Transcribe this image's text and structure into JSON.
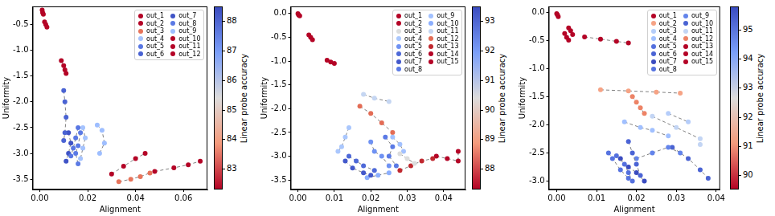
{
  "chart_data": [
    {
      "type": "scatter",
      "x_label": "Alignment",
      "y_label": "Uniformity",
      "xlim": [
        -0.003,
        0.07
      ],
      "xticks": [
        {
          "value": 0,
          "label": "0.00"
        },
        0.02,
        0.04,
        0.06
      ],
      "ylim": [
        -3.7,
        -0.15
      ],
      "yticks": [
        -0.5,
        {
          "value": -1,
          "label": "-1.0"
        },
        -1.5,
        {
          "value": -2,
          "label": "-2.0"
        },
        -2.5,
        {
          "value": -3,
          "label": "-3.0"
        },
        -3.5
      ],
      "grid": false,
      "legend": "upper right",
      "marker": "circle",
      "line_style": "dashed",
      "colorbar": {
        "label": "Linear probe accuracy",
        "range": [
          82.3,
          88.5
        ],
        "ticks": [
          83,
          84,
          85,
          86,
          87,
          88
        ]
      },
      "series": [
        {
          "name": "out_1",
          "color": "#b40426",
          "x": [
            0.001,
            0.0012,
            0.0015
          ],
          "values": [
            -0.22,
            -0.27,
            -0.3
          ]
        },
        {
          "name": "out_2",
          "color": "#b40426",
          "x": [
            0.002,
            0.0025,
            0.003
          ],
          "values": [
            -0.45,
            -0.5,
            -0.55
          ]
        },
        {
          "name": "out_3",
          "color": "#e7745b",
          "x": [
            0.033,
            0.038,
            0.042,
            0.046
          ],
          "values": [
            -3.55,
            -3.5,
            -3.45,
            -3.38
          ]
        },
        {
          "name": "out_4",
          "color": "#a5c3fe",
          "x": [
            0.018,
            0.019,
            0.018,
            0.017
          ],
          "values": [
            -2.5,
            -2.7,
            -2.9,
            -3.1
          ]
        },
        {
          "name": "out_5",
          "color": "#5977e3",
          "x": [
            0.016,
            0.015,
            0.014,
            0.013
          ],
          "values": [
            -2.5,
            -2.7,
            -2.9,
            -3.05
          ]
        },
        {
          "name": "out_6",
          "color": "#4a63d3",
          "x": [
            0.01,
            0.0105,
            0.011,
            0.0105,
            0.01
          ],
          "values": [
            -1.78,
            -2.0,
            -2.3,
            -2.6,
            -2.75
          ]
        },
        {
          "name": "out_7",
          "color": "#3f53c6",
          "x": [
            0.012,
            0.013,
            0.012,
            0.011
          ],
          "values": [
            -2.6,
            -2.8,
            -3.0,
            -3.15
          ]
        },
        {
          "name": "out_8",
          "color": "#5b7ae5",
          "x": [
            0.017,
            0.016,
            0.015,
            0.016
          ],
          "values": [
            -2.6,
            -2.85,
            -3.0,
            -3.2
          ]
        },
        {
          "name": "out_9",
          "color": "#9ebeff",
          "x": [
            0.024,
            0.026,
            0.027,
            0.025
          ],
          "values": [
            -2.45,
            -2.55,
            -2.8,
            -3.0
          ]
        },
        {
          "name": "out_10",
          "color": "#b40426",
          "x": [
            0.009,
            0.01,
            0.0105,
            0.011
          ],
          "values": [
            -1.2,
            -1.3,
            -1.38,
            -1.45
          ]
        },
        {
          "name": "out_11",
          "color": "#b40426",
          "x": [
            0.03,
            0.035,
            0.04,
            0.044
          ],
          "values": [
            -3.4,
            -3.25,
            -3.1,
            -3.0
          ]
        },
        {
          "name": "out_12",
          "color": "#b40426",
          "x": [
            0.048,
            0.056,
            0.062,
            0.067
          ],
          "values": [
            -3.35,
            -3.28,
            -3.22,
            -3.15
          ]
        }
      ]
    },
    {
      "type": "scatter",
      "x_label": "Alignment",
      "y_label": "Uniformity",
      "xlim": [
        -0.002,
        0.046
      ],
      "xticks": [
        {
          "value": 0,
          "label": "0.00"
        },
        0.01,
        0.02,
        0.03,
        0.04
      ],
      "ylim": [
        -3.7,
        0.15
      ],
      "yticks": [
        {
          "value": 0,
          "label": "0.0"
        },
        -0.5,
        {
          "value": -1,
          "label": "-1.0"
        },
        -1.5,
        {
          "value": -2,
          "label": "-2.0"
        },
        -2.5,
        {
          "value": -3,
          "label": "-3.0"
        },
        -3.5
      ],
      "grid": false,
      "legend": "upper right",
      "marker": "circle",
      "line_style": "dashed",
      "colorbar": {
        "label": "Linear probe accuracy",
        "range": [
          87.3,
          93.5
        ],
        "ticks": [
          88,
          89,
          90,
          91,
          92,
          93
        ]
      },
      "series": [
        {
          "name": "out_1",
          "color": "#b40426",
          "x": [
            0.0,
            0.0002,
            0.0005
          ],
          "values": [
            0.0,
            -0.03,
            -0.05
          ]
        },
        {
          "name": "out_2",
          "color": "#b40426",
          "x": [
            0.003,
            0.0035,
            0.004
          ],
          "values": [
            -0.45,
            -0.5,
            -0.55
          ]
        },
        {
          "name": "out_3",
          "color": "#dcdddd",
          "x": [
            0.028,
            0.03,
            0.032
          ],
          "values": [
            -2.95,
            -3.05,
            -3.15
          ]
        },
        {
          "name": "out_4",
          "color": "#aac7fd",
          "x": [
            0.014,
            0.013,
            0.012,
            0.011
          ],
          "values": [
            -2.4,
            -2.6,
            -2.8,
            -2.9
          ]
        },
        {
          "name": "out_5",
          "color": "#6f92f3",
          "x": [
            0.02,
            0.021,
            0.023,
            0.025
          ],
          "values": [
            -2.7,
            -2.9,
            -3.0,
            -3.2
          ]
        },
        {
          "name": "out_6",
          "color": "#4e69d8",
          "x": [
            0.014,
            0.016,
            0.018,
            0.021
          ],
          "values": [
            -3.0,
            -3.1,
            -3.2,
            -3.3
          ]
        },
        {
          "name": "out_7",
          "color": "#4358cb",
          "x": [
            0.013,
            0.015,
            0.018,
            0.02
          ],
          "values": [
            -3.1,
            -3.25,
            -3.35,
            -3.4
          ]
        },
        {
          "name": "out_8",
          "color": "#5b7ae5",
          "x": [
            0.024,
            0.026,
            0.025,
            0.027
          ],
          "values": [
            -2.6,
            -2.8,
            -3.0,
            -3.2
          ]
        },
        {
          "name": "out_9",
          "color": "#a2c1ff",
          "x": [
            0.026,
            0.028,
            0.029
          ],
          "values": [
            -2.6,
            -2.75,
            -2.9
          ]
        },
        {
          "name": "out_10",
          "color": "#8caffe",
          "x": [
            0.019,
            0.022,
            0.025
          ],
          "values": [
            -3.45,
            -3.4,
            -3.35
          ]
        },
        {
          "name": "out_11",
          "color": "#c5d6f2",
          "x": [
            0.018,
            0.021,
            0.025
          ],
          "values": [
            -1.7,
            -1.78,
            -1.85
          ]
        },
        {
          "name": "out_12",
          "color": "#e36c55",
          "x": [
            0.017,
            0.02,
            0.023,
            0.026
          ],
          "values": [
            -1.95,
            -2.1,
            -2.3,
            -2.5
          ]
        },
        {
          "name": "out_13",
          "color": "#c0282f",
          "x": [
            0.028,
            0.031,
            0.034,
            0.037
          ],
          "values": [
            -3.3,
            -3.2,
            -3.1,
            -3.05
          ]
        },
        {
          "name": "out_14",
          "color": "#b40426",
          "x": [
            0.008,
            0.009,
            0.01
          ],
          "values": [
            -0.98,
            -1.02,
            -1.05
          ]
        },
        {
          "name": "out_15",
          "color": "#b40426",
          "x": [
            0.038,
            0.041,
            0.044,
            0.044
          ],
          "values": [
            -3.0,
            -3.05,
            -3.1,
            -2.9
          ]
        }
      ]
    },
    {
      "type": "scatter",
      "x_label": "Alignment",
      "y_label": "Uniformity",
      "xlim": [
        -0.002,
        0.041
      ],
      "xticks": [
        {
          "value": 0,
          "label": "0.00"
        },
        0.01,
        0.02,
        0.03,
        0.04
      ],
      "ylim": [
        -3.15,
        0.1
      ],
      "yticks": [
        {
          "value": 0,
          "label": "0.0"
        },
        -0.5,
        {
          "value": -1,
          "label": "-1.0"
        },
        -1.5,
        {
          "value": -2,
          "label": "-2.0"
        },
        -2.5,
        {
          "value": -3,
          "label": "-3.0"
        }
      ],
      "grid": false,
      "legend": "upper right",
      "marker": "circle",
      "line_style": "dashed",
      "colorbar": {
        "label": "Linear probe accuracy",
        "range": [
          89.5,
          95.8
        ],
        "ticks": [
          90,
          91,
          92,
          93,
          94,
          95
        ]
      },
      "series": [
        {
          "name": "out_1",
          "color": "#b40426",
          "x": [
            0.0,
            0.0002,
            0.0004
          ],
          "values": [
            -0.03,
            -0.05,
            -0.08
          ]
        },
        {
          "name": "out_2",
          "color": "#f6a385",
          "x": [
            0.011,
            0.018,
            0.025,
            0.031
          ],
          "values": [
            -1.38,
            -1.4,
            -1.42,
            -1.44
          ]
        },
        {
          "name": "out_3",
          "color": "#b5cdfa",
          "x": [
            0.028,
            0.033
          ],
          "values": [
            -1.8,
            -1.95
          ]
        },
        {
          "name": "out_4",
          "color": "#a1c0ff",
          "x": [
            0.017,
            0.021,
            0.024,
            0.028
          ],
          "values": [
            -1.95,
            -2.05,
            -2.1,
            -2.2
          ]
        },
        {
          "name": "out_5",
          "color": "#5470de",
          "x": [
            0.015,
            0.017,
            0.018,
            0.019
          ],
          "values": [
            -2.55,
            -2.7,
            -2.85,
            -3.0
          ]
        },
        {
          "name": "out_6",
          "color": "#4b64d5",
          "x": [
            0.018,
            0.019,
            0.02,
            0.021
          ],
          "values": [
            -2.3,
            -2.5,
            -2.7,
            -2.9
          ]
        },
        {
          "name": "out_7",
          "color": "#3b4cc0",
          "x": [
            0.016,
            0.018,
            0.02,
            0.022
          ],
          "values": [
            -2.6,
            -2.75,
            -2.85,
            -3.0
          ]
        },
        {
          "name": "out_8",
          "color": "#5673e0",
          "x": [
            0.013,
            0.014,
            0.016,
            0.018
          ],
          "values": [
            -2.5,
            -2.6,
            -2.8,
            -2.95
          ]
        },
        {
          "name": "out_9",
          "color": "#6384eb",
          "x": [
            0.02,
            0.024,
            0.028,
            0.031
          ],
          "values": [
            -2.6,
            -2.5,
            -2.4,
            -2.5
          ]
        },
        {
          "name": "out_10",
          "color": "#4a63d3",
          "x": [
            0.029,
            0.033,
            0.036,
            0.038
          ],
          "values": [
            -2.4,
            -2.6,
            -2.8,
            -2.95
          ]
        },
        {
          "name": "out_11",
          "color": "#c3d5f4",
          "x": [
            0.024,
            0.03,
            0.036,
            0.036
          ],
          "values": [
            -1.85,
            -2.05,
            -2.25,
            -2.35
          ]
        },
        {
          "name": "out_12",
          "color": "#ed8366",
          "x": [
            0.019,
            0.02,
            0.021,
            0.022
          ],
          "values": [
            -1.5,
            -1.6,
            -1.7,
            -1.8
          ]
        },
        {
          "name": "out_13",
          "color": "#b40426",
          "x": [
            0.003,
            0.0035,
            0.004
          ],
          "values": [
            -0.28,
            -0.33,
            -0.4
          ]
        },
        {
          "name": "out_14",
          "color": "#b40426",
          "x": [
            0.007,
            0.011,
            0.015,
            0.018
          ],
          "values": [
            -0.44,
            -0.48,
            -0.52,
            -0.55
          ]
        },
        {
          "name": "out_15",
          "color": "#b40426",
          "x": [
            0.002,
            0.0025,
            0.003
          ],
          "values": [
            -0.38,
            -0.45,
            -0.5
          ]
        }
      ]
    }
  ]
}
